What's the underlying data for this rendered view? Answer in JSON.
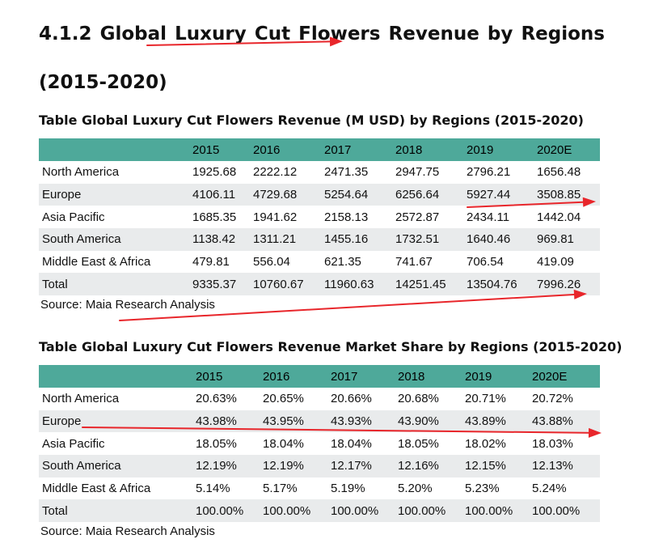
{
  "heading": "4.1.2 Global Luxury Cut Flowers Revenue by Regions (2015-2020)",
  "revenue_table": {
    "caption": "Table Global Luxury Cut Flowers Revenue (M USD) by Regions (2015-2020)",
    "headers": [
      "",
      "2015",
      "2016",
      "2017",
      "2018",
      "2019",
      "2020E"
    ],
    "rows": [
      [
        "North America",
        "1925.68",
        "2222.12",
        "2471.35",
        "2947.75",
        "2796.21",
        "1656.48"
      ],
      [
        "Europe",
        "4106.11",
        "4729.68",
        "5254.64",
        "6256.64",
        "5927.44",
        "3508.85"
      ],
      [
        "Asia Pacific",
        "1685.35",
        "1941.62",
        "2158.13",
        "2572.87",
        "2434.11",
        "1442.04"
      ],
      [
        "South America",
        "1138.42",
        "1311.21",
        "1455.16",
        "1732.51",
        "1640.46",
        "969.81"
      ],
      [
        "Middle East & Africa",
        "479.81",
        "556.04",
        "621.35",
        "741.67",
        "706.54",
        "419.09"
      ],
      [
        "Total",
        "9335.37",
        "10760.67",
        "11960.63",
        "14251.45",
        "13504.76",
        "7996.26"
      ]
    ],
    "source": "Source: Maia Research Analysis"
  },
  "share_table": {
    "caption": "Table Global Luxury Cut Flowers Revenue Market Share by Regions (2015-2020)",
    "headers": [
      "",
      "2015",
      "2016",
      "2017",
      "2018",
      "2019",
      "2020E"
    ],
    "rows": [
      [
        "North America",
        "20.63%",
        "20.65%",
        "20.66%",
        "20.68%",
        "20.71%",
        "20.72%"
      ],
      [
        "Europe",
        "43.98%",
        "43.95%",
        "43.93%",
        "43.90%",
        "43.89%",
        "43.88%"
      ],
      [
        "Asia Pacific",
        "18.05%",
        "18.04%",
        "18.04%",
        "18.05%",
        "18.02%",
        "18.03%"
      ],
      [
        "South America",
        "12.19%",
        "12.19%",
        "12.17%",
        "12.16%",
        "12.15%",
        "12.13%"
      ],
      [
        "Middle East & Africa",
        "5.14%",
        "5.17%",
        "5.19%",
        "5.20%",
        "5.23%",
        "5.24%"
      ],
      [
        "Total",
        "100.00%",
        "100.00%",
        "100.00%",
        "100.00%",
        "100.00%",
        "100.00%"
      ]
    ],
    "source": "Source: Maia Research Analysis"
  },
  "annotation_color": "#e8262b"
}
